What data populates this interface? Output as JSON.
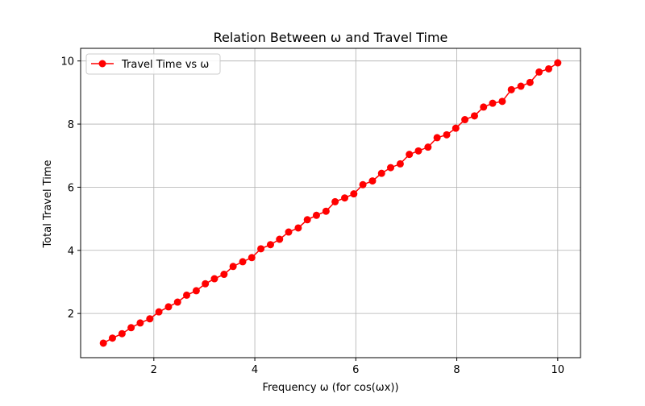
{
  "chart_data": {
    "type": "line",
    "title": "Relation Between ω and Travel Time",
    "xlabel": "Frequency ω (for cos(ωx))",
    "ylabel": "Total Travel Time",
    "xlim": [
      0.55,
      10.45
    ],
    "ylim": [
      0.6,
      10.4
    ],
    "xticks": [
      2,
      4,
      6,
      8,
      10
    ],
    "yticks": [
      2,
      4,
      6,
      8,
      10
    ],
    "grid": true,
    "legend": {
      "position": "upper-left"
    },
    "series": [
      {
        "name": "Travel Time vs ω",
        "color": "#ff0000",
        "marker": "circle",
        "x": [
          1.0,
          1.18,
          1.37,
          1.55,
          1.73,
          1.92,
          2.1,
          2.29,
          2.47,
          2.65,
          2.84,
          3.02,
          3.2,
          3.39,
          3.57,
          3.76,
          3.94,
          4.12,
          4.31,
          4.49,
          4.67,
          4.86,
          5.04,
          5.22,
          5.41,
          5.59,
          5.78,
          5.96,
          6.14,
          6.33,
          6.51,
          6.69,
          6.88,
          7.06,
          7.24,
          7.43,
          7.61,
          7.8,
          7.98,
          8.16,
          8.35,
          8.53,
          8.71,
          8.9,
          9.08,
          9.27,
          9.45,
          9.63,
          9.82,
          10.0
        ],
        "y": [
          1.06,
          1.22,
          1.36,
          1.55,
          1.7,
          1.83,
          2.05,
          2.21,
          2.36,
          2.58,
          2.72,
          2.94,
          3.1,
          3.24,
          3.49,
          3.64,
          3.77,
          4.05,
          4.18,
          4.35,
          4.58,
          4.71,
          4.97,
          5.11,
          5.24,
          5.54,
          5.66,
          5.79,
          6.08,
          6.2,
          6.44,
          6.62,
          6.74,
          7.04,
          7.15,
          7.27,
          7.57,
          7.66,
          7.87,
          8.14,
          8.26,
          8.54,
          8.66,
          8.72,
          9.09,
          9.2,
          9.32,
          9.65,
          9.75,
          9.94
        ]
      }
    ]
  }
}
